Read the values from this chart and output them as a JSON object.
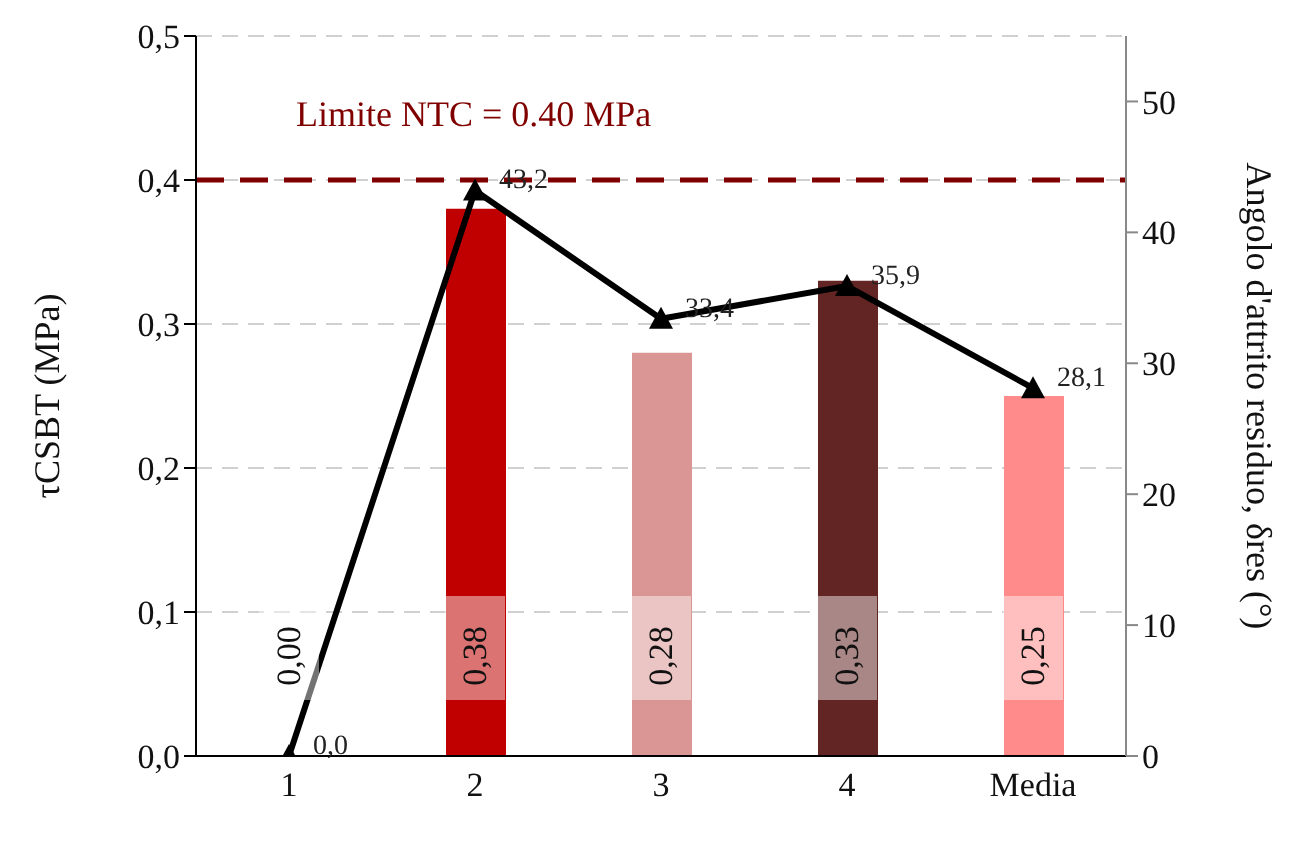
{
  "chart_data": {
    "type": "bar",
    "ylabel": "τCSBT (MPa)",
    "y2label": "Angolo d'attrito residuo, δres (°)",
    "categories": [
      "1",
      "2",
      "3",
      "4",
      "Media"
    ],
    "series": [
      {
        "colors": [
          "#c00000",
          "#c00000",
          "#d99694",
          "#632523",
          "#ff8b8b"
        ],
        "values": [
          0,
          0.38,
          0.28,
          0.33,
          0.25
        ],
        "value_labels": [
          "0,00",
          "0,38",
          "0,28",
          "0,33",
          "0,25"
        ]
      },
      {
        "type": "line",
        "axis": "y2",
        "color": "#000000",
        "values": [
          0,
          43.2,
          33.4,
          35.9,
          28.1
        ],
        "value_labels": [
          "0,0",
          "43,2",
          "33,4",
          "35,9",
          "28,1"
        ]
      }
    ],
    "ylim": [
      0,
      0.5
    ],
    "yticks": [
      {
        "value": 0,
        "label": "0,0"
      },
      {
        "value": 0.1,
        "label": "0,1"
      },
      {
        "value": 0.2,
        "label": "0,2"
      },
      {
        "value": 0.3,
        "label": "0,3"
      },
      {
        "value": 0.4,
        "label": "0,4"
      },
      {
        "value": 0.5,
        "label": "0,5"
      }
    ],
    "y2lim": [
      0,
      55
    ],
    "y2ticks": [
      0,
      10,
      20,
      30,
      40,
      50
    ],
    "ref_lines": [
      {
        "axis": "y",
        "value": 0.4,
        "label": "Limite  NTC = 0.40 MPa",
        "color": "#800000",
        "line_style": "dashed"
      }
    ],
    "grid": "y",
    "marker": "triangle",
    "legend": false
  }
}
